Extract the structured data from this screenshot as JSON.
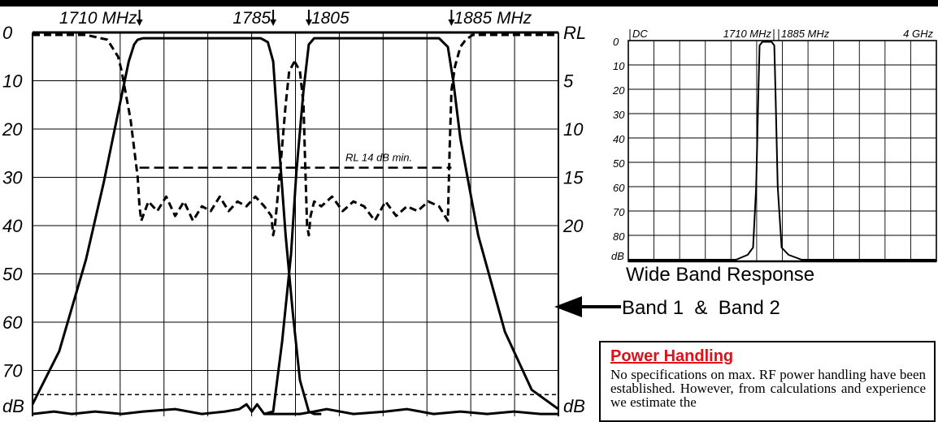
{
  "chart_data": [
    {
      "type": "line",
      "title": "",
      "ylabel": "dB",
      "ylabel_right": "RL",
      "ylim": [
        0,
        80
      ],
      "ylim_right": [
        0,
        40
      ],
      "xlim": [
        1650,
        1945
      ],
      "y_ticks": [
        "0",
        "10",
        "20",
        "30",
        "40",
        "50",
        "60",
        "70"
      ],
      "y_ticks_right": [
        "5",
        "10",
        "15",
        "20"
      ],
      "y_unit_label": "dB",
      "y_unit_label_right": "dB",
      "freq_markers": [
        {
          "label": "1710 MHz",
          "freq": 1710,
          "arrow": "right"
        },
        {
          "label": "1785",
          "freq": 1785,
          "arrow": "right"
        },
        {
          "label": "1805",
          "freq": 1805,
          "arrow": "left"
        },
        {
          "label": "1885 MHz",
          "freq": 1885,
          "arrow": "left"
        }
      ],
      "grid": true,
      "annotation": "RL 14 dB min.",
      "rl_limit_db": 14,
      "rl_limit_freqs": [
        1710,
        1885
      ],
      "reference_level_db": 75,
      "series": [
        {
          "style": "solid",
          "x": [
            1650,
            1665,
            1680,
            1690,
            1700,
            1704,
            1707,
            1709,
            1712,
            1760,
            1778,
            1782,
            1785,
            1788,
            1792,
            1796,
            1800,
            1805,
            1808,
            1812
          ],
          "y": [
            77,
            66,
            47,
            31,
            13,
            6,
            2.5,
            1.5,
            1.2,
            1.2,
            1.2,
            2,
            6,
            22,
            42,
            58,
            72,
            78.5,
            79,
            79
          ]
        },
        {
          "style": "solid",
          "x": [
            1780,
            1785,
            1790,
            1795,
            1798,
            1802,
            1805,
            1808,
            1815,
            1860,
            1878,
            1883,
            1886,
            1890,
            1900,
            1915,
            1930,
            1945
          ],
          "y": [
            79,
            78.5,
            64,
            46,
            29,
            12,
            2.5,
            1.2,
            1.2,
            1.2,
            1.2,
            3,
            10,
            22,
            42,
            62,
            74,
            78
          ]
        },
        {
          "style": "solid",
          "x": [
            1650,
            1662,
            1672,
            1685,
            1700,
            1712,
            1730,
            1745,
            1758,
            1766,
            1770,
            1773,
            1776,
            1780,
            1786,
            1790,
            1792,
            1795,
            1798,
            1800,
            1808,
            1815,
            1830,
            1848,
            1860,
            1875,
            1890,
            1905,
            1920,
            1935,
            1945
          ],
          "y": [
            79,
            78.5,
            79,
            78.5,
            79,
            78.5,
            78,
            79,
            78.5,
            78,
            77,
            78.5,
            77,
            79,
            79,
            79,
            79,
            79,
            79,
            79,
            78.5,
            78,
            79,
            78.5,
            78,
            79,
            78.5,
            79,
            78.5,
            79,
            79
          ]
        },
        {
          "style": "dashed",
          "x": [
            1650,
            1680,
            1692,
            1698,
            1700,
            1702,
            1705,
            1707,
            1709,
            1710,
            1711,
            1715,
            1720,
            1725,
            1730,
            1735,
            1740,
            1745,
            1750,
            1755,
            1760,
            1765,
            1770,
            1775,
            1780,
            1784,
            1785,
            1786,
            1789,
            1792,
            1794,
            1797
          ],
          "y": [
            0.5,
            0.5,
            1.5,
            5,
            8,
            12,
            18,
            24,
            30,
            36,
            39,
            35,
            37,
            34,
            38,
            35,
            39,
            36,
            37,
            34,
            37,
            35,
            36,
            34,
            36,
            38,
            42,
            40,
            28,
            15,
            8,
            6
          ]
        },
        {
          "style": "dashed",
          "x": [
            1797,
            1800,
            1802,
            1803,
            1804,
            1805,
            1806,
            1808,
            1812,
            1818,
            1824,
            1830,
            1836,
            1842,
            1848,
            1854,
            1860,
            1866,
            1872,
            1878,
            1883,
            1884,
            1885,
            1887,
            1890,
            1893,
            1897,
            1905,
            1945
          ],
          "y": [
            6,
            8,
            15,
            28,
            40,
            42,
            38,
            35,
            36,
            34,
            37,
            35,
            36,
            39,
            35,
            38,
            36,
            37,
            35,
            36,
            39,
            24,
            12,
            7,
            3,
            1.5,
            0.5,
            0.5,
            0.5
          ]
        }
      ]
    },
    {
      "type": "line",
      "title": "Wide Band Response",
      "ylim": [
        0,
        90
      ],
      "y_ticks": [
        "0",
        "10",
        "20",
        "30",
        "40",
        "50",
        "60",
        "70",
        "80"
      ],
      "y_unit_label": "dB",
      "x_labels": [
        "DC",
        "1710 MHz",
        "1885 MHz",
        "4 GHz"
      ],
      "xlim": [
        0,
        4000
      ],
      "grid": true,
      "series": [
        {
          "x": [
            0,
            1400,
            1550,
            1620,
            1660,
            1690,
            1705,
            1740,
            1800,
            1860,
            1895,
            1910,
            1940,
            1990,
            2080,
            2250,
            4000
          ],
          "y": [
            90,
            90,
            88,
            85,
            60,
            20,
            2,
            0.5,
            0.5,
            0.5,
            2,
            20,
            60,
            85,
            88,
            90,
            90
          ]
        }
      ]
    }
  ],
  "labels": {
    "band_label": "Band 1  &  Band 2"
  },
  "power_box": {
    "title": "Power Handling",
    "text": "No specifications on max. RF power handling have been established. However, from calculations and experience we estimate the"
  }
}
